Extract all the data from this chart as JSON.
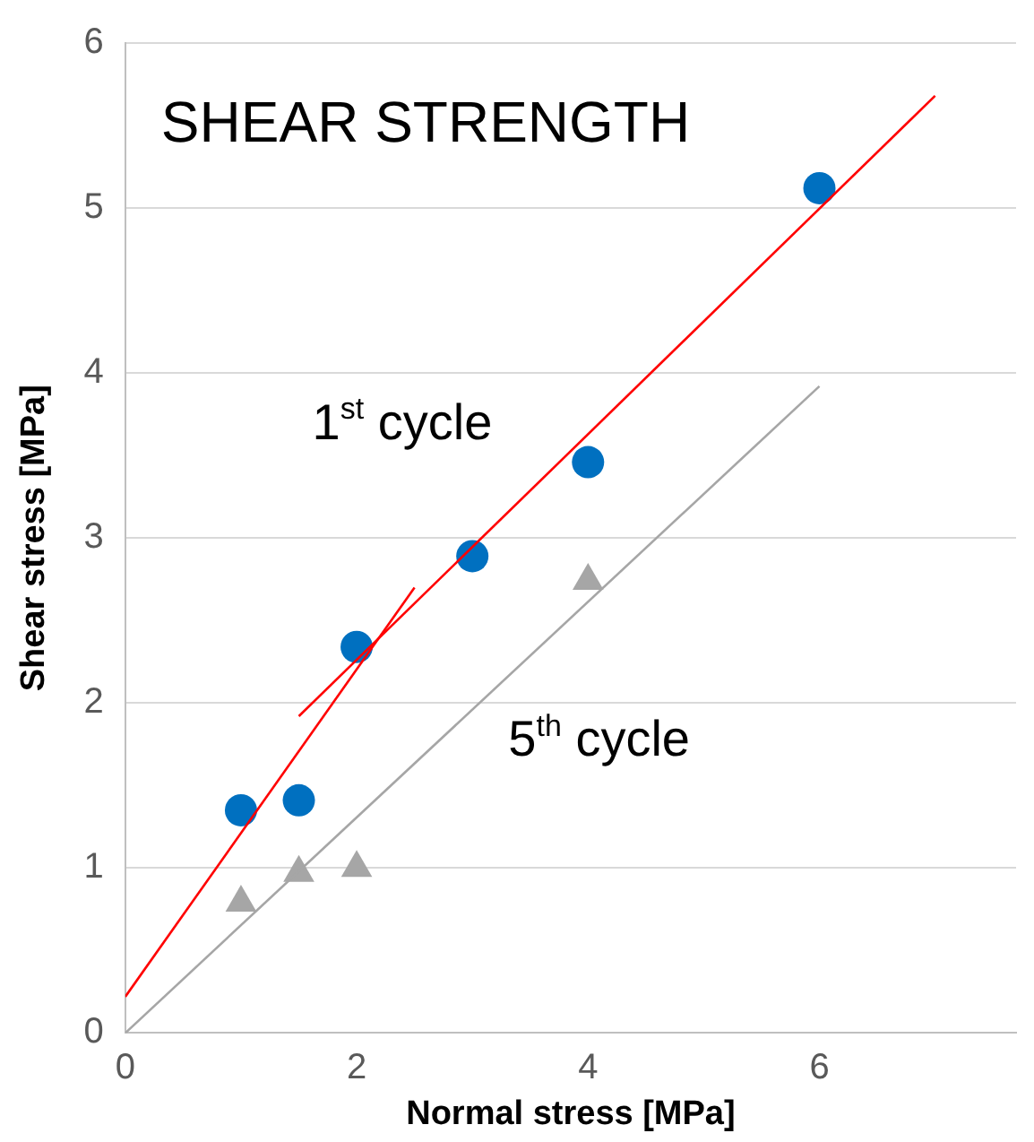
{
  "chart_data": {
    "type": "scatter",
    "title": "SHEAR STRENGTH",
    "xlabel": "Normal stress [MPa]",
    "ylabel": "Shear stress [MPa]",
    "xlim": [
      0,
      7.7
    ],
    "xticks": [
      0,
      2,
      4,
      6
    ],
    "ylim": [
      0,
      6
    ],
    "yticks": [
      0,
      1,
      2,
      3,
      4,
      5,
      6
    ],
    "grid": "y",
    "legend": false,
    "annotations": [
      "1$^{st}$ cycle",
      "5$^{th}$ cycle"
    ],
    "series": [
      {
        "type": "line",
        "color": "#ff0000",
        "x": [
          0,
          2.5
        ],
        "values": [
          0.22,
          2.7
        ],
        "marker": "none"
      },
      {
        "type": "line",
        "color": "#ff0000",
        "x": [
          1.5,
          7
        ],
        "values": [
          1.92,
          5.68
        ],
        "marker": "none"
      },
      {
        "type": "line",
        "color": "#a6a6a6",
        "x": [
          0,
          6
        ],
        "values": [
          0,
          3.92
        ],
        "marker": "none"
      },
      {
        "type": "scatter",
        "color": "#0070c0",
        "x": [
          1,
          1.5,
          2,
          3,
          4,
          6
        ],
        "values": [
          1.35,
          1.41,
          2.34,
          2.89,
          3.46,
          5.12
        ],
        "marker": "circle"
      },
      {
        "type": "scatter",
        "color": "#a6a6a6",
        "x": [
          1,
          1.5,
          2,
          4
        ],
        "values": [
          0.79,
          0.97,
          1.0,
          2.74
        ],
        "marker": "triangle"
      }
    ]
  }
}
